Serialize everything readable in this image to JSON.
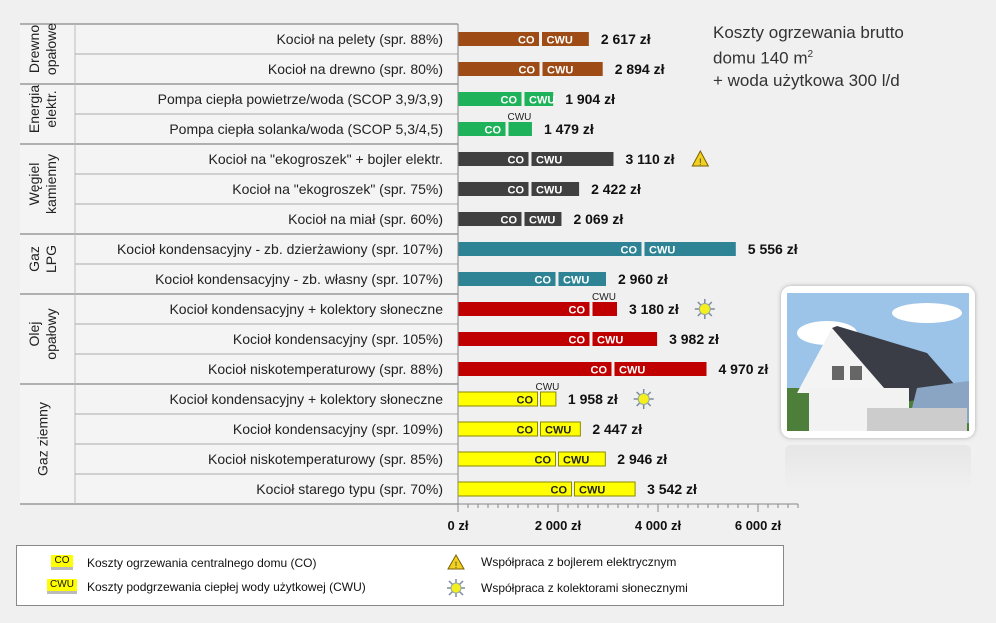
{
  "chart_data": {
    "type": "bar",
    "orientation": "horizontal",
    "stacked": true,
    "title_lines": [
      "Koszty ogrzewania brutto",
      "domu 140 m",
      "2",
      "+ woda użytkowa 300 l/d"
    ],
    "xlim": [
      0,
      6800
    ],
    "x_ticks": [
      0,
      2000,
      4000,
      6000
    ],
    "x_tick_labels": [
      "0 zł",
      "2 000 zł",
      "4 000 zł",
      "6 000 zł"
    ],
    "segment_labels": {
      "co": "CO",
      "cwu": "CWU"
    },
    "groups": [
      {
        "name_lines": [
          "Drewno",
          "opałowe"
        ],
        "color": "#9e4b16",
        "text_color": "#ffffff",
        "rows": [
          {
            "label": "Kocioł na pelety (spr. 88%)",
            "co": 1650,
            "cwu": 967,
            "total": "2 617 zł"
          },
          {
            "label": "Kocioł na drewno (spr. 80%)",
            "co": 1660,
            "cwu": 1234,
            "total": "2 894 zł"
          }
        ]
      },
      {
        "name_lines": [
          "Energia",
          "elektr."
        ],
        "color": "#1eb25a",
        "text_color": "#ffffff",
        "rows": [
          {
            "label": "Pompa ciepła powietrze/woda (SCOP 3,9/3,9)",
            "co": 1300,
            "cwu": 604,
            "total": "1 904 zł"
          },
          {
            "label": "Pompa ciepła solanka/woda (SCOP 5,3/4,5)",
            "co": 980,
            "cwu": 499,
            "total": "1 479 zł",
            "cwu_label_above": true
          }
        ]
      },
      {
        "name_lines": [
          "Węgiel",
          "kamienny"
        ],
        "color": "#404040",
        "text_color": "#ffffff",
        "rows": [
          {
            "label": "Kocioł na \"ekogroszek\" + bojler elektr.",
            "co": 1440,
            "cwu": 1670,
            "total": "3 110 zł",
            "icon": "warning"
          },
          {
            "label": "Kocioł na \"ekogroszek\" (spr. 75%)",
            "co": 1440,
            "cwu": 982,
            "total": "2 422 zł"
          },
          {
            "label": "Kocioł na miał (spr. 60%)",
            "co": 1300,
            "cwu": 769,
            "total": "2 069 zł"
          }
        ]
      },
      {
        "name_lines": [
          "Gaz",
          "LPG"
        ],
        "color": "#2e8494",
        "text_color": "#ffffff",
        "rows": [
          {
            "label": "Kocioł kondensacyjny - zb. dzierżawiony (spr. 107%)",
            "co": 3700,
            "cwu": 1856,
            "total": "5 556 zł"
          },
          {
            "label": "Kocioł kondensacyjny - zb. własny (spr. 107%)",
            "co": 1980,
            "cwu": 980,
            "total": "2 960 zł"
          }
        ]
      },
      {
        "name_lines": [
          "Olej",
          "opałowy"
        ],
        "color": "#c00000",
        "text_color": "#ffffff",
        "rows": [
          {
            "label": "Kocioł kondensacyjny + kolektory słoneczne",
            "co": 2660,
            "cwu": 520,
            "total": "3 180 zł",
            "icon": "sun",
            "cwu_label_above": true
          },
          {
            "label": "Kocioł kondensacyjny (spr. 105%)",
            "co": 2660,
            "cwu": 1322,
            "total": "3 982 zł"
          },
          {
            "label": "Kocioł niskotemperaturowy (spr. 88%)",
            "co": 3100,
            "cwu": 1870,
            "total": "4 970 zł"
          }
        ]
      },
      {
        "name_lines": [
          "Gaz ziemny"
        ],
        "color": "#ffff00",
        "text_color": "#222222",
        "rows": [
          {
            "label": "Kocioł kondensacyjny + kolektory słoneczne",
            "co": 1620,
            "cwu": 338,
            "total": "1 958 zł",
            "icon": "sun",
            "cwu_label_above": true
          },
          {
            "label": "Kocioł kondensacyjny (spr. 109%)",
            "co": 1620,
            "cwu": 827,
            "total": "2 447 zł"
          },
          {
            "label": "Kocioł niskotemperaturowy (spr. 85%)",
            "co": 1980,
            "cwu": 966,
            "total": "2 946 zł"
          },
          {
            "label": "Kocioł starego typu (spr. 70%)",
            "co": 2300,
            "cwu": 1242,
            "total": "3 542 zł"
          }
        ]
      }
    ],
    "legend": {
      "co": {
        "swatch": "CO",
        "text": "Koszty ogrzewania centralnego domu (CO)"
      },
      "cwu": {
        "swatch": "CWU",
        "text": "Koszty podgrzewania ciepłej wody użytkowej (CWU)"
      },
      "warning": {
        "icon": "warning-icon",
        "text": "Współpraca z bojlerem elektrycznym"
      },
      "sun": {
        "icon": "sun-icon",
        "text": "Współpraca z kolektorami słonecznymi"
      }
    }
  }
}
